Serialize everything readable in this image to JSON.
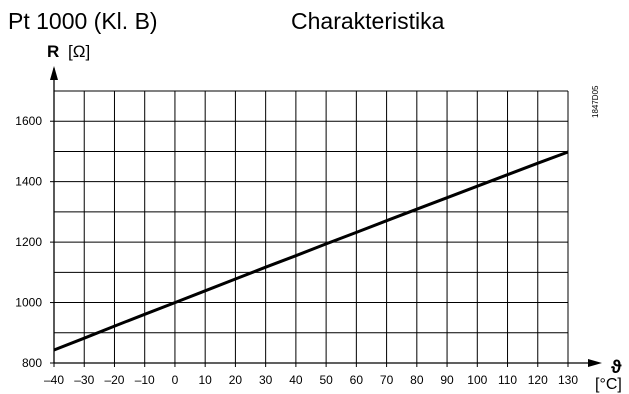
{
  "header": {
    "sensor": "Pt 1000 (Kl. B)",
    "title": "Charakteristika",
    "ref_code": "1847D05"
  },
  "chart_data": {
    "type": "line",
    "ylabel_symbol": "R",
    "ylabel_unit": "[Ω]",
    "xlabel_symbol": "ϑ",
    "xlabel_unit": "[°C]",
    "x_ticks": [
      -40,
      -30,
      -20,
      -10,
      0,
      10,
      20,
      30,
      40,
      50,
      60,
      70,
      80,
      90,
      100,
      110,
      120,
      130
    ],
    "x_tick_labels": [
      "–40",
      "–30",
      "–20",
      "–10",
      "0",
      "10",
      "20",
      "30",
      "40",
      "50",
      "60",
      "70",
      "80",
      "90",
      "100",
      "110",
      "120",
      "130"
    ],
    "y_ticks": [
      800,
      1000,
      1200,
      1400,
      1600
    ],
    "y_minor_step": 100,
    "xlim": [
      -40,
      130
    ],
    "ylim": [
      800,
      1700
    ],
    "grid": true,
    "series": [
      {
        "x": [
          -40,
          -30,
          -20,
          -10,
          0,
          10,
          20,
          30,
          40,
          50,
          60,
          70,
          80,
          90,
          100,
          110,
          120,
          130
        ],
        "values": [
          843,
          882,
          922,
          961,
          1000,
          1039,
          1078,
          1117,
          1155,
          1194,
          1232,
          1271,
          1309,
          1347,
          1385,
          1423,
          1461,
          1498
        ]
      }
    ]
  }
}
